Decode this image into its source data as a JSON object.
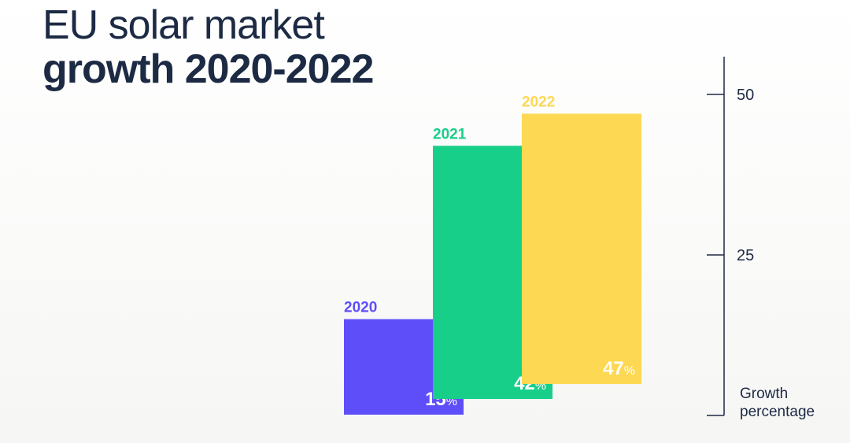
{
  "title": {
    "line1": "EU solar market",
    "line2": "growth 2020-2022"
  },
  "chart_data": {
    "type": "bar",
    "categories": [
      "2020",
      "2021",
      "2022"
    ],
    "values": [
      15,
      42,
      47
    ],
    "value_suffix": "%",
    "colors": [
      "#5e4efa",
      "#18cf8a",
      "#fdd853"
    ],
    "ylabel_lines": [
      "Growth",
      "percentage"
    ],
    "yticks": [
      25,
      50
    ],
    "ylim": [
      0,
      50
    ],
    "axis_position": "right",
    "grid": false,
    "legend": "none"
  },
  "colors": {
    "text": "#1d2a44",
    "axis": "#1d2a44"
  }
}
